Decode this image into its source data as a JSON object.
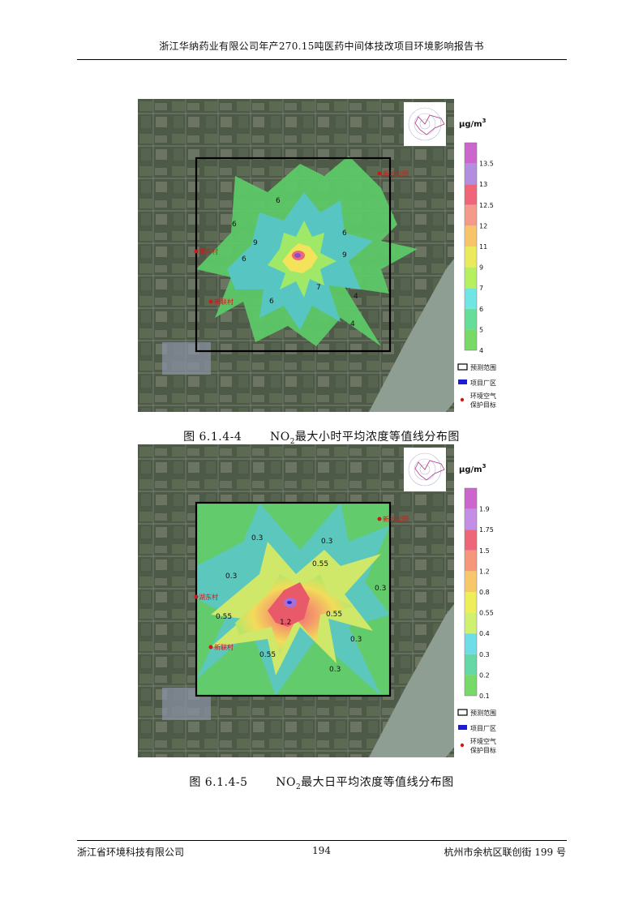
{
  "header": {
    "title": "浙江华纳药业有限公司年产270.15吨医药中间体技改项目环境影响报告书"
  },
  "figures": [
    {
      "caption_number": "图 6.1.4-4",
      "caption_pollutant": "NO",
      "caption_subscript": "2",
      "caption_text": "最大小时平均浓度等值线分布图",
      "unit_main": "μg/m",
      "unit_sup": "3",
      "legend_values": [
        "13.5",
        "13",
        "12.5",
        "12",
        "11",
        "9",
        "7",
        "6",
        "5",
        "4"
      ],
      "legend_colors": [
        "#cc66cc",
        "#b38ee0",
        "#ee6677",
        "#f49a8a",
        "#f7c46a",
        "#eaea5c",
        "#b6ef60",
        "#6fe6e4",
        "#66dd99",
        "#77d966"
      ],
      "contour_labels": [
        "6",
        "6",
        "9",
        "9",
        "6",
        "6",
        "4",
        "4",
        "6",
        "7"
      ],
      "places": [
        "新沙公园",
        "湖东村",
        "新联村"
      ]
    },
    {
      "caption_number": "图 6.1.4-5",
      "caption_pollutant": "NO",
      "caption_subscript": "2",
      "caption_text": "最大日平均浓度等值线分布图",
      "unit_main": "μg/m",
      "unit_sup": "3",
      "legend_values": [
        "1.9",
        "1.75",
        "1.5",
        "1.2",
        "0.8",
        "0.55",
        "0.4",
        "0.3",
        "0.2",
        "0.1"
      ],
      "legend_colors": [
        "#cc66cc",
        "#c48ee6",
        "#ee6677",
        "#f5977a",
        "#f7c86a",
        "#eeee5a",
        "#d0f070",
        "#6fdde8",
        "#66d7a6",
        "#77d966"
      ],
      "contour_labels": [
        "0.3",
        "0.3",
        "0.55",
        "0.3",
        "0.55",
        "0.55",
        "1.2",
        "0.55",
        "0.3",
        "0.3",
        "0.3"
      ],
      "places": [
        "新沙公园",
        "湖东村",
        "新联村"
      ]
    }
  ],
  "legend_items": {
    "range": "预测范围",
    "plant": "项目厂区",
    "target_line1": "环境空气",
    "target_line2": "保护目标"
  },
  "footer": {
    "company": "浙江省环境科技有限公司",
    "page": "194",
    "address": "杭州市余杭区联创街 199 号"
  }
}
